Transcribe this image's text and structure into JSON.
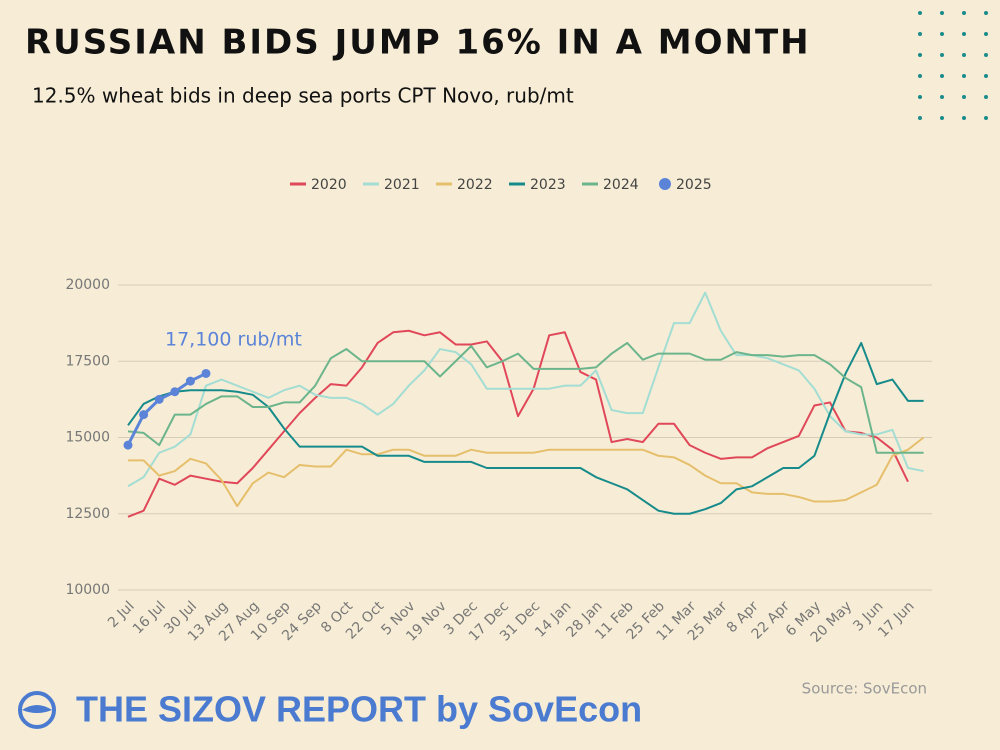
{
  "chart_data": {
    "type": "line",
    "title": "RUSSIAN BIDS JUMP 16% IN A MONTH",
    "subtitle": "12.5% wheat bids in deep sea ports CPT Novo, rub/mt",
    "annotation": "17,100 rub/mt",
    "source": "Source: SovEcon",
    "footer": "THE SIZOV REPORT by SovEcon",
    "categories": [
      "2 Jul",
      null,
      "16 Jul",
      null,
      "30 Jul",
      null,
      "13 Aug",
      null,
      "27 Aug",
      null,
      "10 Sep",
      null,
      "24 Sep",
      null,
      "8 Oct",
      null,
      "22 Oct",
      null,
      "5 Nov",
      null,
      "19 Nov",
      null,
      "3 Dec",
      null,
      "17 Dec",
      null,
      "31 Dec",
      null,
      "14 Jan",
      null,
      "28 Jan",
      null,
      "11 Feb",
      null,
      "25 Feb",
      null,
      "11 Mar",
      null,
      "25 Mar",
      null,
      "8 Apr",
      null,
      "22 Apr",
      null,
      "6 May",
      null,
      "20 May",
      null,
      "3 Jun",
      null,
      "17 Jun",
      null
    ],
    "ylim": [
      10000,
      20000
    ],
    "yticks": [
      10000,
      12500,
      15000,
      17500,
      20000
    ],
    "grid": true,
    "legend": "top",
    "series": [
      {
        "name": "2020",
        "color": "#e0485a",
        "values": [
          12400,
          12600,
          13650,
          13450,
          13750,
          13650,
          13550,
          13500,
          14000,
          14600,
          15200,
          15800,
          16300,
          16750,
          16700,
          17300,
          18100,
          18450,
          18500,
          18350,
          18450,
          18050,
          18050,
          18150,
          17500,
          15700,
          16600,
          18350,
          18450,
          17150,
          16900,
          14850,
          14950,
          14850,
          15450,
          15450,
          14750,
          14500,
          14300,
          14350,
          14350,
          14650,
          14850,
          15050,
          16050,
          16150,
          15200,
          15150,
          15000,
          14600,
          13550,
          null
        ]
      },
      {
        "name": "2021",
        "color": "#a3ddd3",
        "values": [
          13400,
          13700,
          14500,
          14700,
          15100,
          16700,
          16900,
          16700,
          16500,
          16300,
          16550,
          16700,
          16400,
          16300,
          16300,
          16100,
          15750,
          16100,
          16700,
          17200,
          17900,
          17800,
          17400,
          16600,
          16600,
          16600,
          16600,
          16600,
          16700,
          16700,
          17200,
          15900,
          15800,
          15800,
          17300,
          18750,
          18750,
          19750,
          18500,
          17700,
          17700,
          17600,
          17400,
          17200,
          16600,
          15700,
          15200,
          15100,
          15100,
          15250,
          14000,
          13900
        ]
      },
      {
        "name": "2022",
        "color": "#e6bf6c",
        "values": [
          14250,
          14250,
          13750,
          13900,
          14300,
          14150,
          13600,
          12750,
          13500,
          13850,
          13700,
          14100,
          14050,
          14050,
          14600,
          14450,
          14450,
          14600,
          14600,
          14400,
          14400,
          14400,
          14600,
          14500,
          14500,
          14500,
          14500,
          14600,
          14600,
          14600,
          14600,
          14600,
          14600,
          14600,
          14400,
          14350,
          14100,
          13750,
          13500,
          13500,
          13200,
          13150,
          13150,
          13050,
          12900,
          12900,
          12950,
          13200,
          13450,
          14400,
          14600,
          15000
        ]
      },
      {
        "name": "2023",
        "color": "#178b8b",
        "values": [
          15400,
          16100,
          16350,
          16500,
          16550,
          16550,
          16550,
          16500,
          16400,
          16000,
          15300,
          14700,
          14700,
          14700,
          14700,
          14700,
          14400,
          14400,
          14400,
          14200,
          14200,
          14200,
          14200,
          14000,
          14000,
          14000,
          14000,
          14000,
          14000,
          14000,
          13700,
          13500,
          13300,
          12950,
          12600,
          12500,
          12500,
          12650,
          12850,
          13300,
          13400,
          13700,
          14000,
          14000,
          14400,
          15800,
          17100,
          18100,
          16750,
          16900,
          16200,
          16200
        ]
      },
      {
        "name": "2024",
        "color": "#6cb58c",
        "values": [
          15200,
          15150,
          14750,
          15750,
          15750,
          16100,
          16350,
          16350,
          16000,
          16000,
          16150,
          16150,
          16700,
          17600,
          17900,
          17500,
          17500,
          17500,
          17500,
          17500,
          17000,
          17500,
          18000,
          17300,
          17500,
          17750,
          17250,
          17250,
          17250,
          17250,
          17300,
          17750,
          18100,
          17550,
          17750,
          17750,
          17750,
          17550,
          17550,
          17800,
          17700,
          17700,
          17650,
          17700,
          17700,
          17400,
          16950,
          16650,
          14500,
          14500,
          14500,
          14500
        ]
      },
      {
        "name": "2025",
        "color": "#5b84d9",
        "markers": true,
        "values": [
          14750,
          15750,
          16250,
          16500,
          16850,
          17100,
          null,
          null,
          null,
          null,
          null,
          null,
          null,
          null,
          null,
          null,
          null,
          null,
          null,
          null,
          null,
          null,
          null,
          null,
          null,
          null,
          null,
          null,
          null,
          null,
          null,
          null,
          null,
          null,
          null,
          null,
          null,
          null,
          null,
          null,
          null,
          null,
          null,
          null,
          null,
          null,
          null,
          null,
          null,
          null,
          null,
          null
        ]
      }
    ]
  }
}
